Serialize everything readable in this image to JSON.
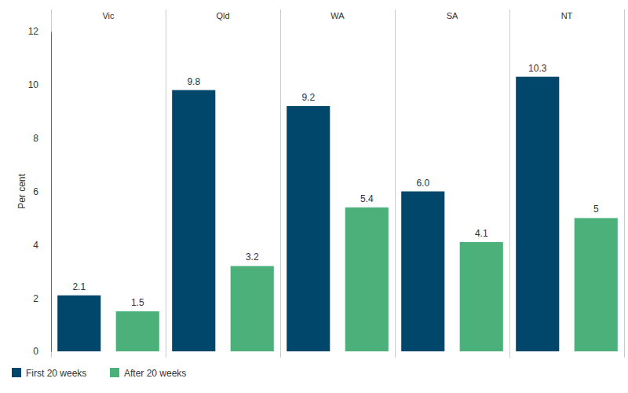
{
  "chart_data": {
    "type": "bar",
    "categories": [
      "Vic",
      "Qld",
      "WA",
      "SA",
      "NT"
    ],
    "series": [
      {
        "name": "First 20 weeks",
        "color": "#00476b",
        "values": [
          2.1,
          9.8,
          9.2,
          6.0,
          10.3
        ],
        "value_labels": [
          "2.1",
          "9.8",
          "9.2",
          "6.0",
          "10.3"
        ]
      },
      {
        "name": "After 20 weeks",
        "color": "#4cb07b",
        "values": [
          1.5,
          3.2,
          5.4,
          4.1,
          5.0
        ]
      }
    ],
    "y_label": "Per cent",
    "ylim": [
      0,
      12
    ],
    "yticks": [
      0,
      2,
      4,
      6,
      8,
      10,
      12
    ],
    "grid": false,
    "legend": "bottom-left",
    "data_labels": true
  }
}
